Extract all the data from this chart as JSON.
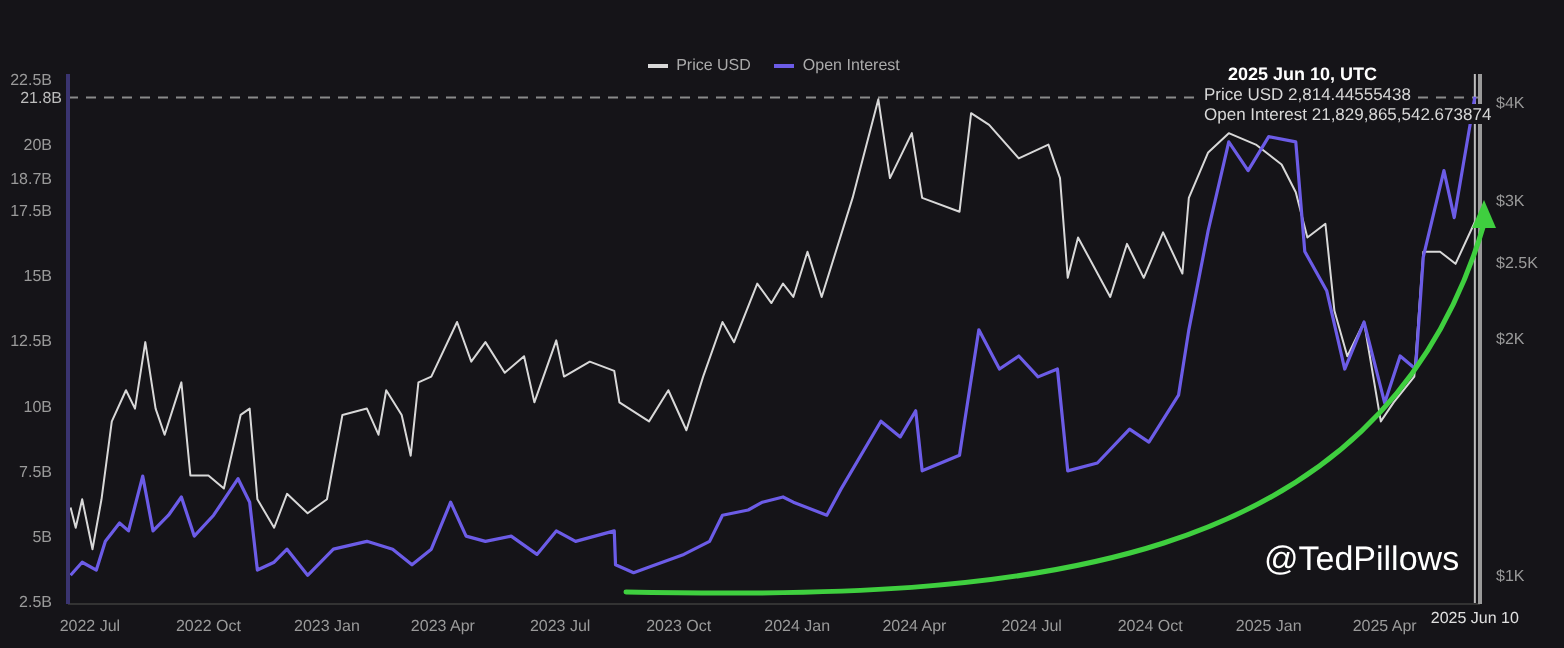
{
  "chart_data": {
    "type": "line",
    "xlim": [
      "2022-06-14",
      "2025-06-14"
    ],
    "xticks": [
      {
        "value": "2022-07-01",
        "label": "2022 Jul"
      },
      {
        "value": "2022-10-01",
        "label": "2022 Oct"
      },
      {
        "value": "2023-01-01",
        "label": "2023 Jan"
      },
      {
        "value": "2023-04-01",
        "label": "2023 Apr"
      },
      {
        "value": "2023-07-01",
        "label": "2023 Jul"
      },
      {
        "value": "2023-10-01",
        "label": "2023 Oct"
      },
      {
        "value": "2024-01-01",
        "label": "2024 Jan"
      },
      {
        "value": "2024-04-01",
        "label": "2024 Apr"
      },
      {
        "value": "2024-07-01",
        "label": "2024 Jul"
      },
      {
        "value": "2024-10-01",
        "label": "2024 Oct"
      },
      {
        "value": "2025-01-01",
        "label": "2025 Jan"
      },
      {
        "value": "2025-04-01",
        "label": "2025 Apr"
      }
    ],
    "ylim": [
      2.4,
      22.7
    ],
    "yticks": [
      {
        "value": 2.5,
        "label": "2.5B"
      },
      {
        "value": 5,
        "label": "5B"
      },
      {
        "value": 7.5,
        "label": "7.5B"
      },
      {
        "value": 10,
        "label": "10B"
      },
      {
        "value": 12.5,
        "label": "12.5B"
      },
      {
        "value": 15,
        "label": "15B"
      },
      {
        "value": 17.5,
        "label": "17.5B"
      },
      {
        "value": 18.7,
        "label": "18.7B"
      },
      {
        "value": 20,
        "label": "20B"
      },
      {
        "value": 22.5,
        "label": "22.5B"
      }
    ],
    "y2lim": [
      920,
      4340
    ],
    "y2ticks": [
      {
        "value": 1000,
        "label": "$1K"
      },
      {
        "value": 2000,
        "label": "$2K"
      },
      {
        "value": 2500,
        "label": "$2.5K"
      },
      {
        "value": 3000,
        "label": "$3K"
      },
      {
        "value": 4000,
        "label": "$4K"
      }
    ],
    "log": "y2",
    "legend": "top",
    "marker": "none",
    "line_style": "solid",
    "ref_lines": [
      {
        "axis": "y",
        "value": 21.8,
        "label": "21.8B",
        "color": "#8a8a8a",
        "line_style": "dashed"
      },
      {
        "axis": "x",
        "value": "2025-06-10",
        "label": "2025 Jun 10",
        "color": "#bdbdbd",
        "line_style": "solid"
      }
    ],
    "annotations": [
      "2025 Jun 10, UTC",
      "Price USD 2,814.44555438",
      "Open Interest 21,829,865,542.673874",
      "@TedPillows"
    ],
    "series": [
      {
        "name": "Price USD",
        "color": "#d8d8d8",
        "axis": "y2",
        "x": [
          "2022-06-16",
          "2022-06-20",
          "2022-06-25",
          "2022-07-03",
          "2022-07-10",
          "2022-07-18",
          "2022-07-29",
          "2022-08-05",
          "2022-08-13",
          "2022-08-21",
          "2022-08-28",
          "2022-09-10",
          "2022-09-17",
          "2022-10-01",
          "2022-10-13",
          "2022-10-26",
          "2022-11-02",
          "2022-11-08",
          "2022-11-21",
          "2022-12-01",
          "2022-12-17",
          "2023-01-01",
          "2023-01-13",
          "2023-02-01",
          "2023-02-10",
          "2023-02-16",
          "2023-02-28",
          "2023-03-07",
          "2023-03-13",
          "2023-03-23",
          "2023-04-12",
          "2023-04-23",
          "2023-05-04",
          "2023-05-19",
          "2023-06-03",
          "2023-06-11",
          "2023-06-28",
          "2023-07-04",
          "2023-07-24",
          "2023-08-12",
          "2023-08-16",
          "2023-09-08",
          "2023-09-23",
          "2023-10-07",
          "2023-10-20",
          "2023-11-04",
          "2023-11-13",
          "2023-12-01",
          "2023-12-12",
          "2023-12-21",
          "2023-12-29",
          "2024-01-09",
          "2024-01-20",
          "2024-02-13",
          "2024-03-04",
          "2024-03-13",
          "2024-03-30",
          "2024-04-07",
          "2024-05-06",
          "2024-05-15",
          "2024-05-29",
          "2024-06-21",
          "2024-07-14",
          "2024-07-23",
          "2024-07-29",
          "2024-08-06",
          "2024-08-31",
          "2024-09-13",
          "2024-09-26",
          "2024-10-11",
          "2024-10-26",
          "2024-10-31",
          "2024-11-15",
          "2024-12-01",
          "2024-12-22",
          "2025-01-11",
          "2025-01-22",
          "2025-01-31",
          "2025-02-14",
          "2025-02-21",
          "2025-03-03",
          "2025-03-16",
          "2025-03-29",
          "2025-04-08",
          "2025-04-24",
          "2025-05-01",
          "2025-05-14",
          "2025-05-26",
          "2025-06-10"
        ],
        "values": [
          1220,
          1150,
          1250,
          1080,
          1250,
          1570,
          1720,
          1630,
          1980,
          1630,
          1510,
          1760,
          1340,
          1340,
          1290,
          1600,
          1630,
          1250,
          1150,
          1270,
          1200,
          1250,
          1600,
          1630,
          1510,
          1720,
          1600,
          1420,
          1760,
          1790,
          2100,
          1870,
          1980,
          1810,
          1900,
          1660,
          1990,
          1790,
          1870,
          1820,
          1660,
          1570,
          1720,
          1530,
          1790,
          2100,
          1980,
          2350,
          2220,
          2350,
          2260,
          2580,
          2260,
          3020,
          4030,
          3200,
          3650,
          3020,
          2900,
          3870,
          3740,
          3390,
          3530,
          3200,
          2390,
          2690,
          2260,
          2640,
          2390,
          2730,
          2420,
          3020,
          3450,
          3650,
          3530,
          3330,
          3070,
          2690,
          2800,
          2170,
          1900,
          2100,
          1570,
          1660,
          1790,
          2580,
          2580,
          2490,
          2814
        ]
      },
      {
        "name": "Open Interest",
        "color": "#6c5ce7",
        "axis": "y",
        "x": [
          "2022-06-16",
          "2022-06-25",
          "2022-07-06",
          "2022-07-13",
          "2022-07-24",
          "2022-07-31",
          "2022-08-11",
          "2022-08-19",
          "2022-08-31",
          "2022-09-10",
          "2022-09-20",
          "2022-10-05",
          "2022-10-24",
          "2022-11-02",
          "2022-11-08",
          "2022-11-21",
          "2022-12-01",
          "2022-12-17",
          "2023-01-06",
          "2023-02-01",
          "2023-02-21",
          "2023-03-08",
          "2023-03-23",
          "2023-04-07",
          "2023-04-19",
          "2023-05-04",
          "2023-05-24",
          "2023-06-13",
          "2023-06-28",
          "2023-07-13",
          "2023-08-12",
          "2023-08-13",
          "2023-08-27",
          "2023-09-13",
          "2023-10-05",
          "2023-10-25",
          "2023-11-04",
          "2023-11-24",
          "2023-12-05",
          "2023-12-21",
          "2023-12-29",
          "2024-01-24",
          "2024-02-04",
          "2024-03-06",
          "2024-03-21",
          "2024-04-02",
          "2024-04-07",
          "2024-05-06",
          "2024-05-10",
          "2024-05-21",
          "2024-06-06",
          "2024-06-21",
          "2024-07-06",
          "2024-07-21",
          "2024-07-29",
          "2024-08-21",
          "2024-09-15",
          "2024-09-30",
          "2024-10-23",
          "2024-10-31",
          "2024-11-15",
          "2024-12-01",
          "2024-12-16",
          "2025-01-01",
          "2025-01-22",
          "2025-01-29",
          "2025-02-15",
          "2025-03-01",
          "2025-03-16",
          "2025-04-01",
          "2025-04-13",
          "2025-04-25",
          "2025-05-01",
          "2025-05-17",
          "2025-05-25",
          "2025-06-10"
        ],
        "values": [
          3.5,
          4.0,
          3.7,
          4.8,
          5.5,
          5.2,
          7.3,
          5.2,
          5.8,
          6.5,
          5.0,
          5.8,
          7.2,
          6.3,
          3.7,
          4.0,
          4.5,
          3.5,
          4.5,
          4.8,
          4.5,
          3.9,
          4.5,
          6.3,
          5.0,
          4.8,
          5.0,
          4.3,
          5.2,
          4.8,
          5.2,
          3.9,
          3.6,
          3.9,
          4.3,
          4.8,
          5.8,
          6.0,
          6.3,
          6.5,
          6.3,
          5.8,
          6.8,
          9.4,
          8.8,
          9.8,
          7.5,
          8.1,
          9.4,
          12.9,
          11.4,
          11.9,
          11.1,
          11.4,
          7.5,
          7.8,
          9.1,
          8.6,
          10.4,
          12.9,
          16.7,
          20.1,
          19.0,
          20.3,
          20.1,
          15.9,
          14.4,
          11.4,
          13.2,
          10.1,
          11.9,
          11.4,
          15.7,
          19.0,
          17.2,
          21.83
        ]
      }
    ]
  }
}
